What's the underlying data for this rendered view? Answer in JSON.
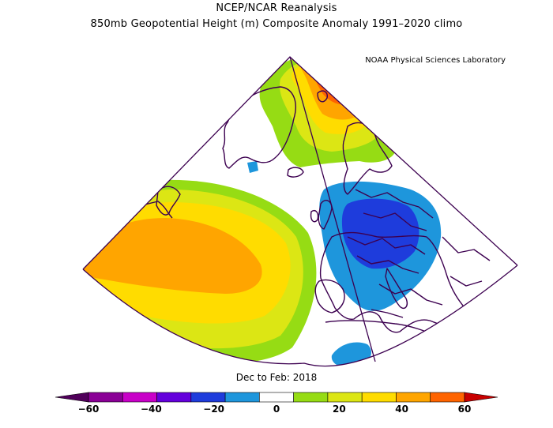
{
  "header": {
    "line1": "NCEP/NCAR Reanalysis",
    "line2": "850mb Geopotential Height (m) Composite Anomaly 1991–2020 climo",
    "credit": "NOAA Physical Sciences Laboratory"
  },
  "period_label": "Dec to Feb: 2018",
  "colorbar": {
    "ticks": [
      "−60",
      "−40",
      "−20",
      "0",
      "20",
      "40",
      "60"
    ],
    "tick_values": [
      -60,
      -40,
      -20,
      0,
      20,
      40,
      60
    ],
    "bins": [
      -60,
      -50,
      -40,
      -30,
      -20,
      -10,
      10,
      20,
      30,
      40,
      50,
      60
    ],
    "colors": [
      "#8a0096",
      "#c800c8",
      "#6400dc",
      "#1e3cdc",
      "#1e96dc",
      "#ffffff",
      "#96dc14",
      "#dce614",
      "#ffdc00",
      "#ffa500",
      "#ff6400"
    ],
    "low_cap_color": "#50005a",
    "high_cap_color": "#c80000"
  },
  "map_data": {
    "field": "850mb geopotential height anomaly",
    "units": "m",
    "region": "North Atlantic and Europe"
  }
}
